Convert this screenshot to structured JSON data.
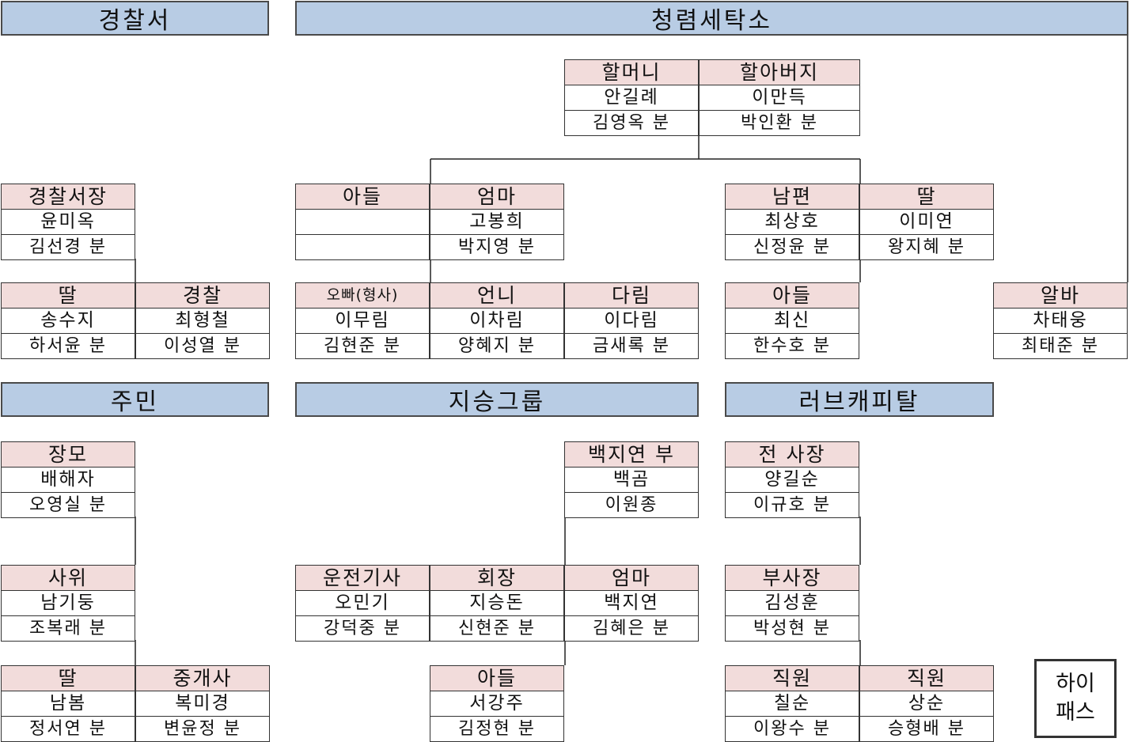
{
  "sections": {
    "police": "경찰서",
    "laundry": "청렴세탁소",
    "residents": "주민",
    "jiseung": "지승그룹",
    "love_capital": "러브캐피탈"
  },
  "cards": {
    "grandma": {
      "role": "할머니",
      "name": "안길례",
      "actor": "김영옥 분"
    },
    "grandpa": {
      "role": "할아버지",
      "name": "이만득",
      "actor": "박인환 분"
    },
    "son_a": {
      "role": "아들",
      "name": "",
      "actor": ""
    },
    "mom_a": {
      "role": "엄마",
      "name": "고봉희",
      "actor": "박지영 분"
    },
    "husband": {
      "role": "남편",
      "name": "최상호",
      "actor": "신정윤 분"
    },
    "daughter_a": {
      "role": "딸",
      "name": "이미연",
      "actor": "왕지혜 분"
    },
    "brother": {
      "role": "오빠(형사)",
      "name": "이무림",
      "actor": "김현준 분"
    },
    "sister": {
      "role": "언니",
      "name": "이차림",
      "actor": "양혜지 분"
    },
    "darim": {
      "role": "다림",
      "name": "이다림",
      "actor": "금새록 분"
    },
    "son_b": {
      "role": "아들",
      "name": "최신",
      "actor": "한수호 분"
    },
    "parttime": {
      "role": "알바",
      "name": "차태웅",
      "actor": "최태준 분"
    },
    "chief": {
      "role": "경찰서장",
      "name": "윤미옥",
      "actor": "김선경 분"
    },
    "daughter_p": {
      "role": "딸",
      "name": "송수지",
      "actor": "하서윤 분"
    },
    "officer": {
      "role": "경찰",
      "name": "최형철",
      "actor": "이성열 분"
    },
    "mother_in_law": {
      "role": "장모",
      "name": "배해자",
      "actor": "오영실 분"
    },
    "son_in_law": {
      "role": "사위",
      "name": "남기둥",
      "actor": "조복래 분"
    },
    "daughter_r": {
      "role": "딸",
      "name": "남봄",
      "actor": "정서연 분"
    },
    "broker": {
      "role": "중개사",
      "name": "복미경",
      "actor": "변윤정 분"
    },
    "baek_father": {
      "role": "백지연 부",
      "name": "백곰",
      "actor": "이원종"
    },
    "driver": {
      "role": "운전기사",
      "name": "오민기",
      "actor": "강덕중 분"
    },
    "chairman": {
      "role": "회장",
      "name": "지승돈",
      "actor": "신현준 분"
    },
    "mom_j": {
      "role": "엄마",
      "name": "백지연",
      "actor": "김혜은 분"
    },
    "son_j": {
      "role": "아들",
      "name": "서강주",
      "actor": "김정현 분"
    },
    "ex_president": {
      "role": "전 사장",
      "name": "양길순",
      "actor": "이규호 분"
    },
    "vice_president": {
      "role": "부사장",
      "name": "김성훈",
      "actor": "박성현 분"
    },
    "staff1": {
      "role": "직원",
      "name": "칠순",
      "actor": "이왕수 분"
    },
    "staff2": {
      "role": "직원",
      "name": "상순",
      "actor": "승형배 분"
    }
  },
  "hipass": {
    "line1": "하이",
    "line2": "패스"
  }
}
